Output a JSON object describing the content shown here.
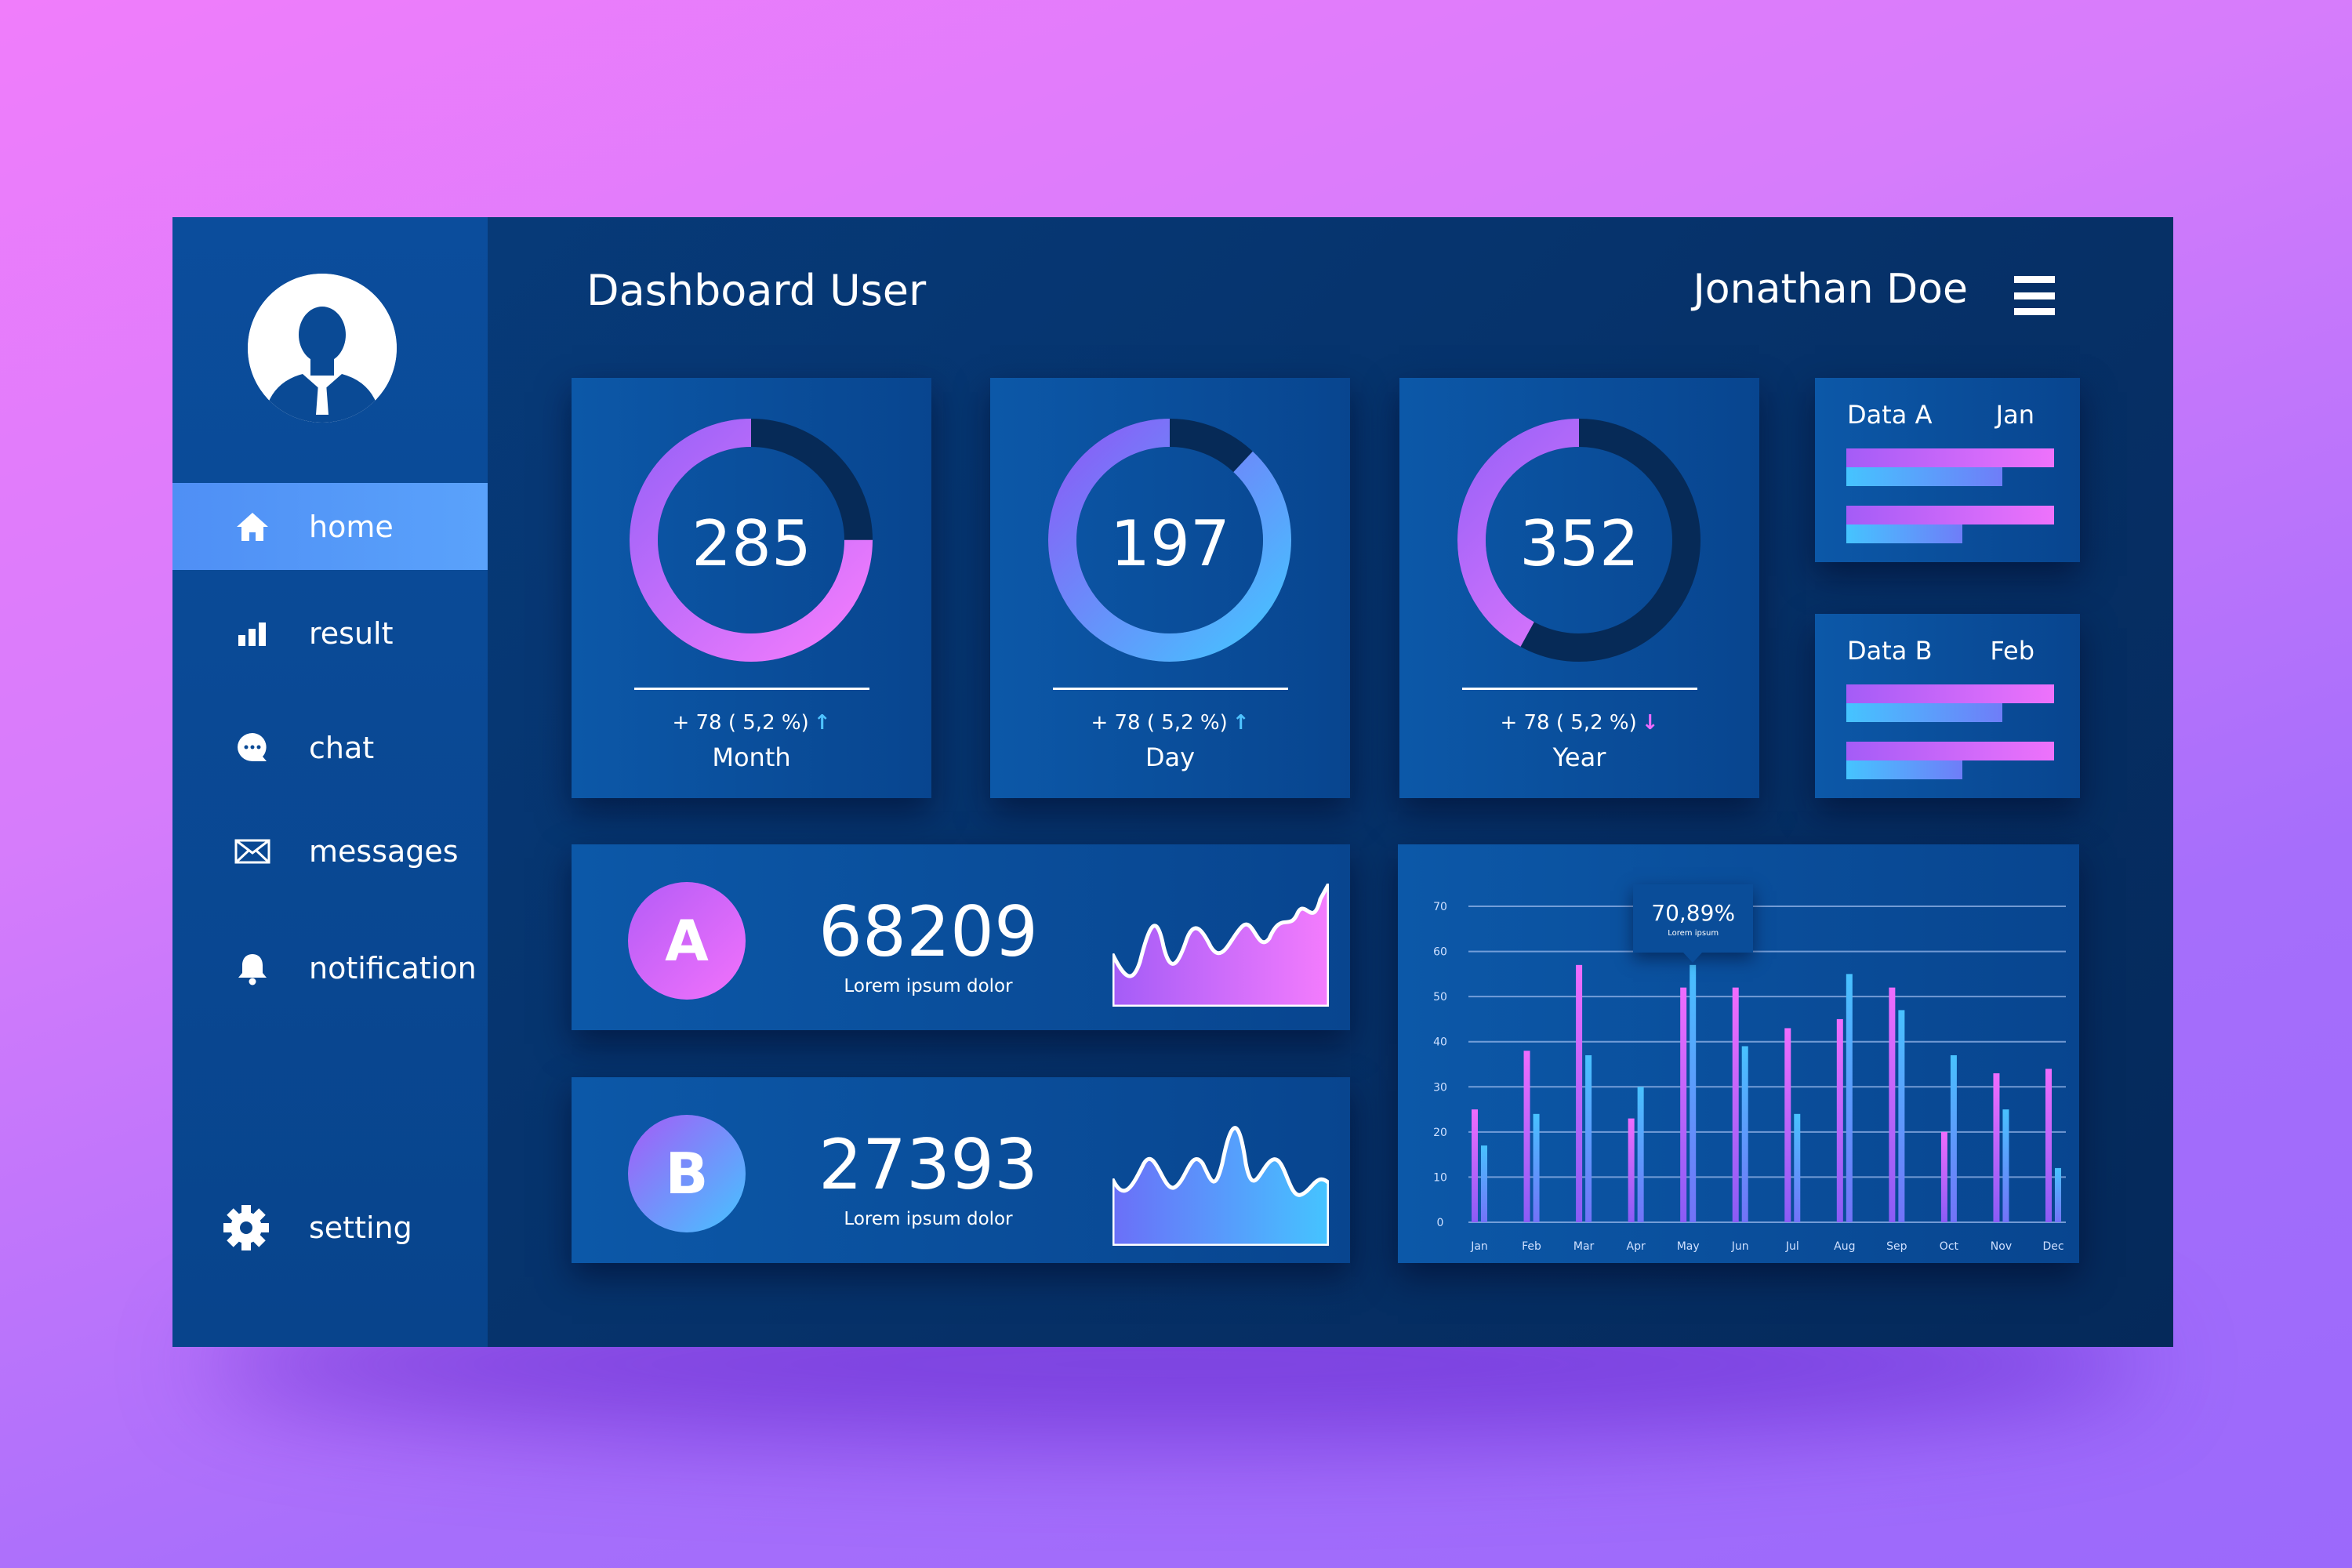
{
  "header": {
    "title": "Dashboard User",
    "user_name": "Jonathan Doe",
    "menu_icon": "hamburger-icon"
  },
  "sidebar": {
    "items": [
      {
        "label": "home",
        "icon": "home-icon",
        "active": true
      },
      {
        "label": "result",
        "icon": "bar-chart-icon"
      },
      {
        "label": "chat",
        "icon": "chat-icon"
      },
      {
        "label": "messages",
        "icon": "envelope-icon"
      },
      {
        "label": "notification",
        "icon": "bell-icon"
      },
      {
        "label": "setting",
        "icon": "gear-icon"
      }
    ]
  },
  "stats": [
    {
      "value": "285",
      "delta": "+ 78 ( 5,2 %)",
      "trend": "up",
      "period": "Month",
      "fill": 0.75
    },
    {
      "value": "197",
      "delta": "+ 78 ( 5,2 %)",
      "trend": "up",
      "period": "Day",
      "fill": 0.88
    },
    {
      "value": "352",
      "delta": "+ 78 ( 5,2 %)",
      "trend": "down",
      "period": "Year",
      "fill": 0.42
    }
  ],
  "data_cards": [
    {
      "title": "Data A",
      "month": "Jan",
      "bars": [
        1.0,
        0.75,
        1.0,
        0.56
      ]
    },
    {
      "title": "Data B",
      "month": "Feb",
      "bars": [
        1.0,
        0.75,
        1.0,
        0.56
      ]
    }
  ],
  "kpis": [
    {
      "letter": "A",
      "value": "68209",
      "caption": "Lorem ipsum dolor"
    },
    {
      "letter": "B",
      "value": "27393",
      "caption": "Lorem ipsum dolor"
    }
  ],
  "colors": {
    "pink": "#ee72fb",
    "purple": "#8a5cf6",
    "cyan": "#45c4ff",
    "trend_up": "#4fc3ff",
    "trend_down": "#ee6bff"
  },
  "chart_data": {
    "type": "bar",
    "categories": [
      "Jan",
      "Feb",
      "Mar",
      "Apr",
      "May",
      "Jun",
      "Jul",
      "Aug",
      "Sep",
      "Oct",
      "Nov",
      "Dec"
    ],
    "series": [
      {
        "values": [
          25,
          38,
          57,
          23,
          52,
          52,
          43,
          45,
          52,
          20,
          33,
          34
        ]
      },
      {
        "values": [
          17,
          24,
          37,
          30,
          57,
          39,
          24,
          55,
          47,
          37,
          25,
          12
        ]
      }
    ],
    "yticks": [
      0,
      10,
      20,
      30,
      40,
      50,
      60,
      70
    ],
    "ylim": [
      0,
      70
    ],
    "grid": true,
    "tooltip": {
      "value": "70,89%",
      "caption": "Lorem ipsum",
      "category": "May"
    }
  }
}
